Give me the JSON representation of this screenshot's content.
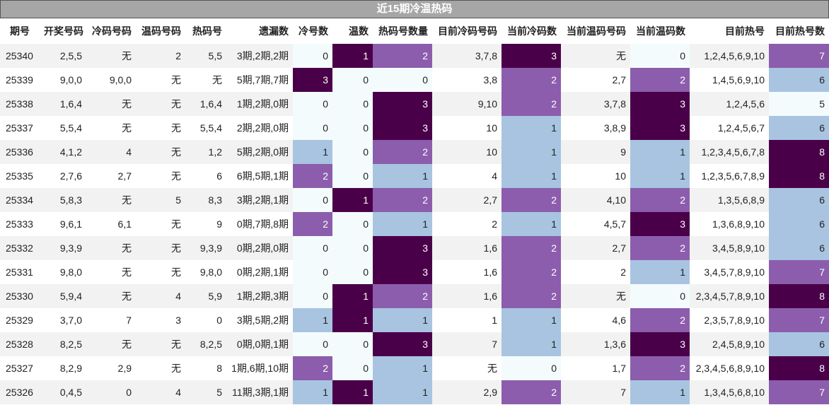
{
  "title": "近15期冷温热码",
  "heatmap_colors": [
    "#f4fbfc",
    "#a8c4e0",
    "#8c5dac",
    "#4a0049"
  ],
  "table": {
    "header": [
      "期号",
      "开奖号码",
      "冷码号码",
      "温码号码",
      "热码号",
      "遗漏数",
      "冷号数",
      "温数",
      "热码号数量",
      "目前冷码号码",
      "当前冷码数",
      "当前温码号码",
      "当前温码数",
      "目前热号",
      "目前热号数"
    ],
    "rows": [
      [
        25340,
        "2,5,5",
        "无",
        2,
        "5,5",
        "3期,2期,2期",
        0,
        1,
        2,
        "3,7,8",
        3,
        "无",
        0,
        "1,2,4,5,6,9,10",
        7
      ],
      [
        25339,
        "9,0,0",
        "9,0,0",
        "无",
        "无",
        "5期,7期,7期",
        3,
        0,
        0,
        "3,8",
        2,
        "2,7",
        2,
        "1,4,5,6,9,10",
        6
      ],
      [
        25338,
        "1,6,4",
        "无",
        "无",
        "1,6,4",
        "1期,2期,0期",
        0,
        0,
        3,
        "9,10",
        2,
        "3,7,8",
        3,
        "1,2,4,5,6",
        5
      ],
      [
        25337,
        "5,5,4",
        "无",
        "无",
        "5,5,4",
        "2期,2期,0期",
        0,
        0,
        3,
        10,
        1,
        "3,8,9",
        3,
        "1,2,4,5,6,7",
        6
      ],
      [
        25336,
        "4,1,2",
        4,
        "无",
        "1,2",
        "5期,2期,0期",
        1,
        0,
        2,
        10,
        1,
        9,
        1,
        "1,2,3,4,5,6,7,8",
        8
      ],
      [
        25335,
        "2,7,6",
        "2,7",
        "无",
        6,
        "6期,5期,1期",
        2,
        0,
        1,
        4,
        1,
        10,
        1,
        "1,2,3,5,6,7,8,9",
        8
      ],
      [
        25334,
        "5,8,3",
        "无",
        5,
        "8,3",
        "3期,2期,1期",
        0,
        1,
        2,
        "2,7",
        2,
        "4,10",
        2,
        "1,3,5,6,8,9",
        6
      ],
      [
        25333,
        "9,6,1",
        "6,1",
        "无",
        9,
        "0期,7期,8期",
        2,
        0,
        1,
        2,
        1,
        "4,5,7",
        3,
        "1,3,6,8,9,10",
        6
      ],
      [
        25332,
        "9,3,9",
        "无",
        "无",
        "9,3,9",
        "0期,2期,0期",
        0,
        0,
        3,
        "1,6",
        2,
        "2,7",
        2,
        "3,4,5,8,9,10",
        6
      ],
      [
        25331,
        "9,8,0",
        "无",
        "无",
        "9,8,0",
        "0期,2期,1期",
        0,
        0,
        3,
        "1,6",
        2,
        2,
        1,
        "3,4,5,7,8,9,10",
        7
      ],
      [
        25330,
        "5,9,4",
        "无",
        4,
        "5,9",
        "1期,2期,3期",
        0,
        1,
        2,
        "1,6",
        2,
        "无",
        0,
        "2,3,4,5,7,8,9,10",
        8
      ],
      [
        25329,
        "3,7,0",
        7,
        3,
        0,
        "3期,5期,2期",
        1,
        1,
        1,
        1,
        1,
        "4,6",
        2,
        "2,3,5,7,8,9,10",
        7
      ],
      [
        25328,
        "8,2,5",
        "无",
        "无",
        "8,2,5",
        "0期,0期,1期",
        0,
        0,
        3,
        7,
        1,
        "1,3,6",
        3,
        "2,4,5,8,9,10",
        6
      ],
      [
        25327,
        "8,2,9",
        "2,9",
        "无",
        8,
        "1期,6期,10期",
        2,
        0,
        1,
        "无",
        0,
        "1,7",
        2,
        "2,3,4,5,6,8,9,10",
        8
      ],
      [
        25326,
        "0,4,5",
        0,
        4,
        5,
        "11期,3期,1期",
        1,
        1,
        1,
        "2,9",
        2,
        7,
        1,
        "1,3,4,5,6,8,10",
        7
      ]
    ]
  }
}
